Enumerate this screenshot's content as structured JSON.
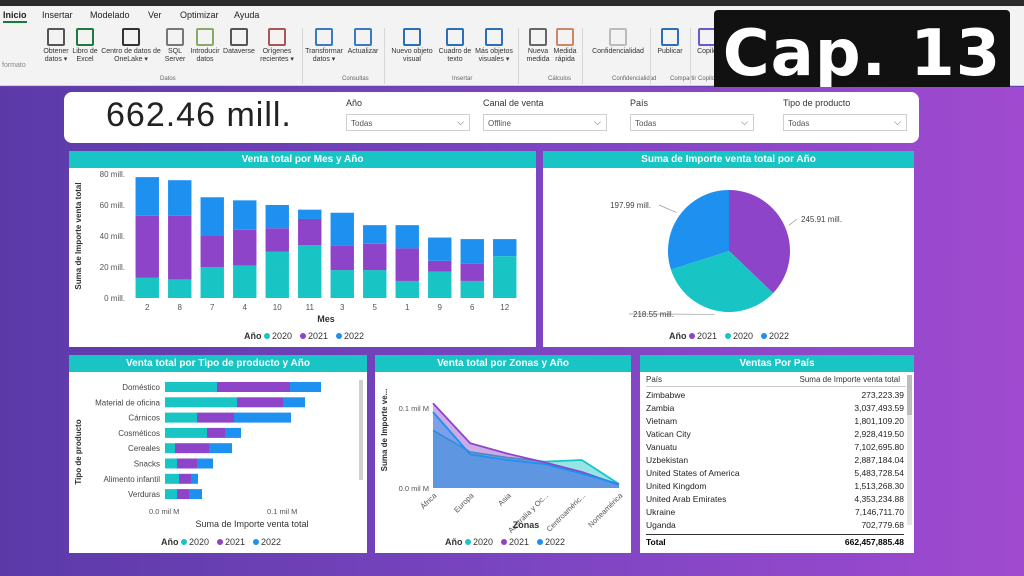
{
  "ribbon": {
    "tabs": [
      "Inicio",
      "Insertar",
      "Modelado",
      "Ver",
      "Optimizar",
      "Ayuda"
    ],
    "partial_label": "formato",
    "buttons": [
      {
        "label": "Obtener datos ▾",
        "icon": "database-icon"
      },
      {
        "label": "Libro de Excel",
        "icon": "excel-icon"
      },
      {
        "label": "Centro de datos de OneLake ▾",
        "icon": "onelake-icon"
      },
      {
        "label": "SQL Server",
        "icon": "sql-icon"
      },
      {
        "label": "Introducir datos",
        "icon": "table-icon"
      },
      {
        "label": "Dataverse",
        "icon": "dataverse-icon"
      },
      {
        "label": "Orígenes recientes ▾",
        "icon": "recent-sources-icon"
      },
      {
        "label": "Transformar datos ▾",
        "icon": "transform-icon"
      },
      {
        "label": "Actualizar",
        "icon": "refresh-icon"
      },
      {
        "label": "Nuevo objeto visual",
        "icon": "visual-icon"
      },
      {
        "label": "Cuadro de texto",
        "icon": "textbox-icon"
      },
      {
        "label": "Más objetos visuales ▾",
        "icon": "more-visuals-icon"
      },
      {
        "label": "Nueva medida",
        "icon": "calculator-icon"
      },
      {
        "label": "Medida rápida",
        "icon": "quick-measure-icon"
      },
      {
        "label": "Confidencialidad",
        "icon": "shield-icon"
      },
      {
        "label": "Publicar",
        "icon": "publish-icon"
      },
      {
        "label": "Copilo",
        "icon": "copilot-icon"
      }
    ],
    "groups": [
      "Datos",
      "Consultas",
      "Insertar",
      "Cálculos",
      "Confidencialidad",
      "Compartir",
      "Copilo"
    ]
  },
  "badge": {
    "text": "Cap. 13"
  },
  "kpi": {
    "value": "662.46 mill."
  },
  "slicers": [
    {
      "label": "Año",
      "value": "Todas"
    },
    {
      "label": "Canal de venta",
      "value": "Offline"
    },
    {
      "label": "País",
      "value": "Todas"
    },
    {
      "label": "Tipo de producto",
      "value": "Todas"
    }
  ],
  "legend": {
    "title": "Año"
  },
  "colors": {
    "2020": "#19c4c4",
    "2021": "#8e44c8",
    "2022": "#1e90f0",
    "title_bar": "#19c4c4"
  },
  "chart_data": [
    {
      "type": "bar",
      "title": "Venta total por Mes y Año",
      "xlabel": "Mes",
      "ylabel": "Suma de Importe venta total",
      "ylim": [
        0,
        80
      ],
      "yticks": [
        "0 mill.",
        "20 mill.",
        "40 mill.",
        "60 mill.",
        "80 mill."
      ],
      "categories": [
        "2",
        "8",
        "7",
        "4",
        "10",
        "11",
        "3",
        "5",
        "1",
        "9",
        "6",
        "12"
      ],
      "stacked": true,
      "series": [
        {
          "name": "2020",
          "values": [
            13,
            12,
            20,
            21,
            30,
            34,
            18,
            18,
            11,
            17,
            11,
            27
          ]
        },
        {
          "name": "2021",
          "values": [
            40,
            41,
            20,
            23,
            15,
            17,
            16,
            17,
            21,
            7,
            11,
            0
          ]
        },
        {
          "name": "2022",
          "values": [
            25,
            23,
            25,
            19,
            15,
            6,
            21,
            12,
            15,
            15,
            16,
            11
          ]
        }
      ],
      "legend_position": "bottom"
    },
    {
      "type": "pie",
      "title": "Suma de Importe venta total por Año",
      "series": [
        {
          "name": "2021",
          "value": 245.91,
          "label": "245.91 mill."
        },
        {
          "name": "2020",
          "value": 218.55,
          "label": "218.55 mill."
        },
        {
          "name": "2022",
          "value": 197.99,
          "label": "197.99 mill."
        }
      ],
      "legend_position": "bottom"
    },
    {
      "type": "bar",
      "orientation": "horizontal",
      "stacked": true,
      "title": "Venta total por Tipo de producto y Año",
      "xlabel": "Suma de Importe venta total",
      "ylabel": "Tipo de producto",
      "xticks": [
        "0.0 mil M",
        "0.1 mil M"
      ],
      "categories": [
        "Doméstico",
        "Material de oficina",
        "Cárnicos",
        "Cosméticos",
        "Cereales",
        "Snacks",
        "Alimento infantil",
        "Verduras"
      ],
      "series": [
        {
          "name": "2020",
          "values": [
            52,
            72,
            32,
            42,
            10,
            12,
            14,
            12
          ]
        },
        {
          "name": "2021",
          "values": [
            73,
            46,
            37,
            18,
            34,
            20,
            12,
            12
          ]
        },
        {
          "name": "2022",
          "values": [
            31,
            22,
            57,
            16,
            23,
            16,
            7,
            13
          ]
        }
      ],
      "legend_position": "bottom"
    },
    {
      "type": "area",
      "title": "Venta total por Zonas y Año",
      "xlabel": "Zonas",
      "ylabel": "Suma de Importe ve...",
      "yticks": [
        "0.0 mil M",
        "0.1 mil M"
      ],
      "categories": [
        "África",
        "Europa",
        "Asia",
        "Australia y Oc...",
        "Centroaméric...",
        "Norteamérica"
      ],
      "series": [
        {
          "name": "2020",
          "values": [
            0.072,
            0.045,
            0.038,
            0.033,
            0.035,
            0.005
          ]
        },
        {
          "name": "2021",
          "values": [
            0.106,
            0.056,
            0.043,
            0.032,
            0.02,
            0.004
          ]
        },
        {
          "name": "2022",
          "values": [
            0.095,
            0.042,
            0.035,
            0.03,
            0.018,
            0.005
          ]
        }
      ],
      "legend_position": "bottom"
    }
  ],
  "table": {
    "title": "Ventas Por País",
    "headers": [
      "País",
      "Suma de Importe venta total"
    ],
    "rows": [
      [
        "Zimbabwe",
        "273,223.39"
      ],
      [
        "Zambia",
        "3,037,493.59"
      ],
      [
        "Vietnam",
        "1,801,109.20"
      ],
      [
        "Vatican City",
        "2,928,419.50"
      ],
      [
        "Vanuatu",
        "7,102,695.80"
      ],
      [
        "Uzbekistan",
        "2,887,184.04"
      ],
      [
        "United States of America",
        "5,483,728.54"
      ],
      [
        "United Kingdom",
        "1,513,268.30"
      ],
      [
        "United Arab Emirates",
        "4,353,234.88"
      ],
      [
        "Ukraine",
        "7,146,711.70"
      ],
      [
        "Uganda",
        "702,779.68"
      ]
    ],
    "total": [
      "Total",
      "662,457,885.48"
    ]
  }
}
